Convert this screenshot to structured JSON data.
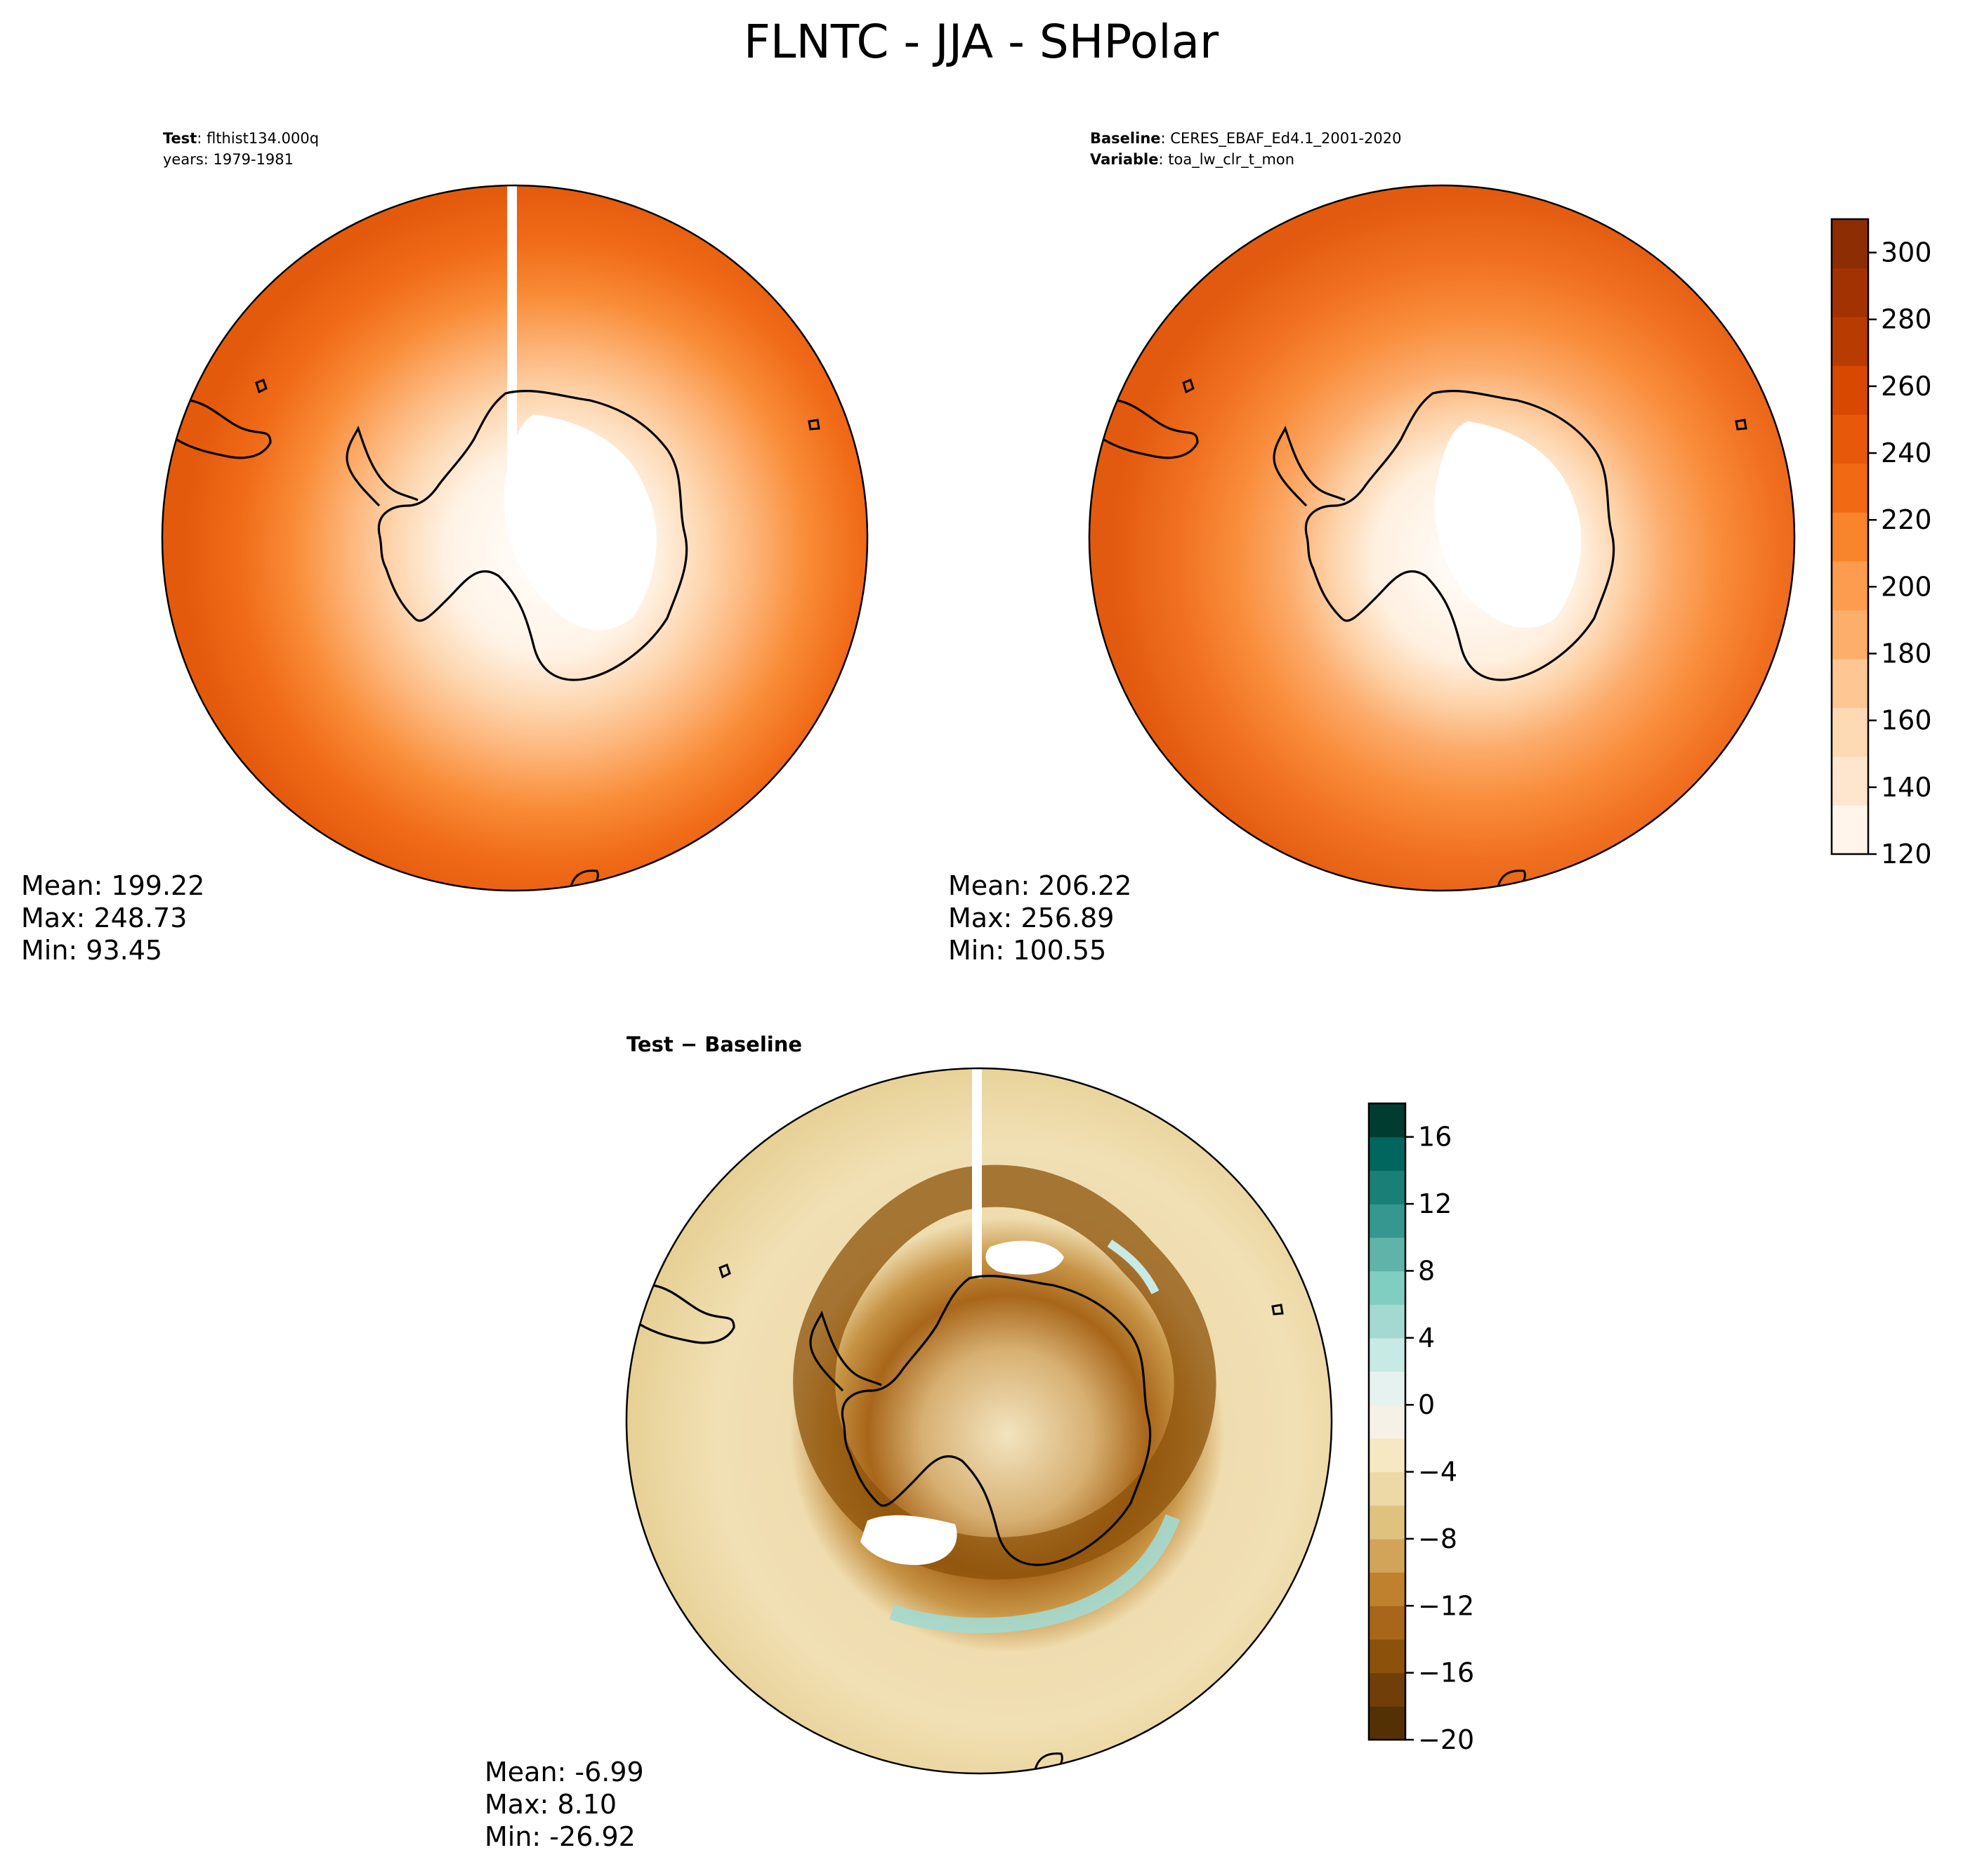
{
  "figure": {
    "title": "FLNTC - JJA - SHPolar"
  },
  "panels": {
    "test": {
      "label_bold": "Test",
      "label_value": "flthist134.000q",
      "label_line2": "years: 1979-1981",
      "stats": {
        "mean": "Mean: 199.22",
        "max": "Max: 248.73",
        "min": "Min: 93.45"
      }
    },
    "baseline": {
      "label_bold": "Baseline",
      "label_value": "CERES_EBAF_Ed4.1_2001-2020",
      "label_bold2": "Variable",
      "label_value2": "toa_lw_clr_t_mon",
      "stats": {
        "mean": "Mean: 206.22",
        "max": "Max: 256.89",
        "min": "Min: 100.55"
      }
    },
    "diff": {
      "label": "Test − Baseline",
      "stats": {
        "mean": "Mean: -6.99",
        "max": "Max:  8.10",
        "min": "Min: -26.92"
      }
    }
  },
  "colorbars": {
    "main": {
      "min": 120,
      "max": 310,
      "ticks": [
        "300",
        "280",
        "260",
        "240",
        "220",
        "200",
        "180",
        "160",
        "140",
        "120"
      ],
      "colors": [
        "#fff5eb",
        "#fee6ce",
        "#fdd9b4",
        "#fdc692",
        "#fdae6b",
        "#fd9c4f",
        "#f8852b",
        "#f16913",
        "#e7580a",
        "#d94801",
        "#b83c02",
        "#a33203",
        "#8c2d04"
      ]
    },
    "diff": {
      "min": -20,
      "max": 18,
      "ticks": [
        "16",
        "12",
        "8",
        "4",
        "0",
        "−4",
        "−8",
        "−12",
        "−16",
        "−20"
      ],
      "colors": [
        "#543005",
        "#6f3e09",
        "#8c510a",
        "#a8661a",
        "#bf812d",
        "#d1a45a",
        "#dfc27d",
        "#ecd9a6",
        "#f6e8c3",
        "#f5f1e6",
        "#e6f2ef",
        "#c7eae5",
        "#a3d9d0",
        "#80cdc1",
        "#5fb3a8",
        "#35978f",
        "#1a7f77",
        "#01665e",
        "#003c30"
      ]
    }
  }
}
